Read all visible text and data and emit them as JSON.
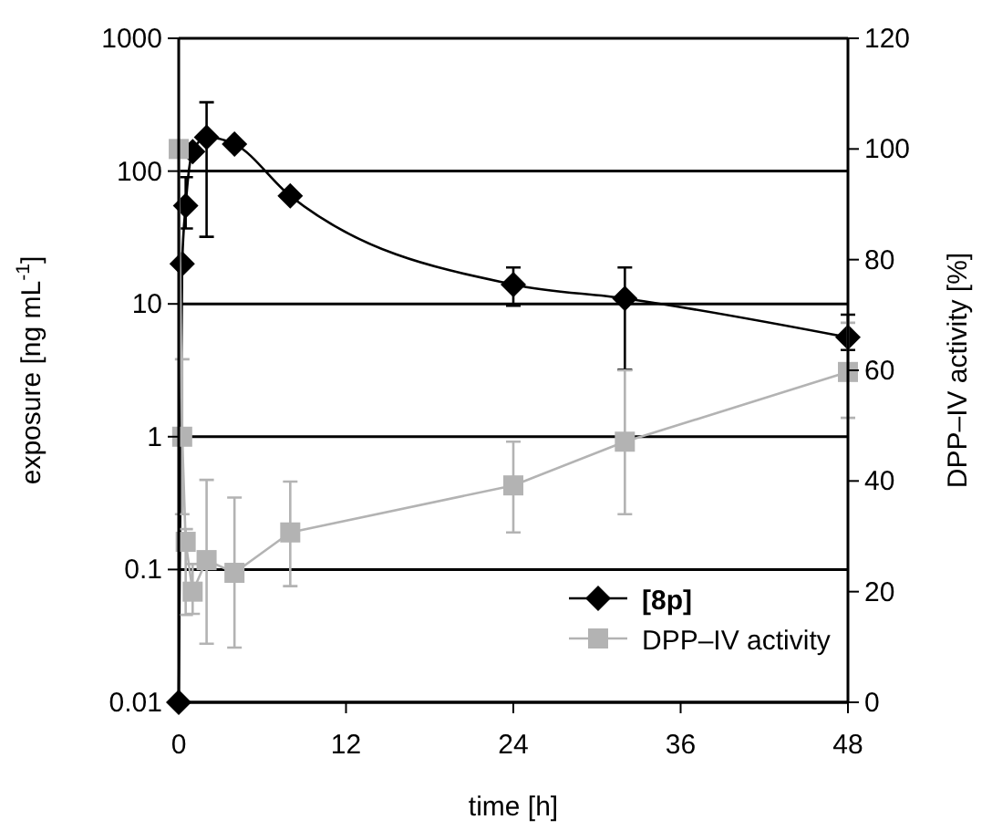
{
  "chart_data": {
    "type": "line",
    "xlabel": "time [h]",
    "ylabel": "exposure  [ng mL$^{-1}$]",
    "y2label": "DPP–IV activity [%]",
    "x": [
      0,
      0.25,
      0.5,
      1,
      2,
      4,
      8,
      24,
      32,
      48
    ],
    "series": [
      {
        "name": "[8p]",
        "color": "#000000",
        "marker": "diamond",
        "values": [
          0.01,
          20,
          55,
          140,
          180,
          160,
          65,
          14,
          11,
          5.6
        ],
        "errors": [
          null,
          null,
          [
            37,
            90
          ],
          null,
          [
            32,
            330
          ],
          null,
          null,
          [
            9.7,
            18.8
          ],
          [
            3.2,
            18.8
          ],
          [
            4.5,
            8.3
          ]
        ]
      },
      {
        "name": "DPP–IV activity",
        "color": "#b3b3b3",
        "marker": "square",
        "axis": "y2",
        "values": [
          100,
          48,
          29,
          20,
          25.7,
          23.4,
          30.7,
          39.2,
          47.1,
          59.7
        ],
        "errors": [
          null,
          [
            34,
            62
          ],
          [
            15.8,
            31.3
          ],
          [
            16,
            25
          ],
          [
            10.6,
            40.2
          ],
          [
            9.9,
            37
          ],
          [
            21,
            39.9
          ],
          [
            30.7,
            47.1
          ],
          [
            34,
            60
          ],
          [
            51.4,
            68.6
          ]
        ]
      }
    ],
    "xlim": [
      0,
      48
    ],
    "xticks": [
      0,
      12,
      24,
      36,
      48
    ],
    "log": "y",
    "ylim": [
      0.01,
      1000
    ],
    "yticks": [
      {
        "value": 0.01,
        "label": "0.01"
      },
      {
        "value": 0.1,
        "label": "0.1"
      },
      1,
      10,
      100,
      1000
    ],
    "y2lim": [
      0,
      120
    ],
    "y2ticks": [
      0,
      20,
      40,
      60,
      80,
      100,
      120
    ],
    "grid": "y",
    "legend": "bottom right",
    "line_style": "solid"
  }
}
